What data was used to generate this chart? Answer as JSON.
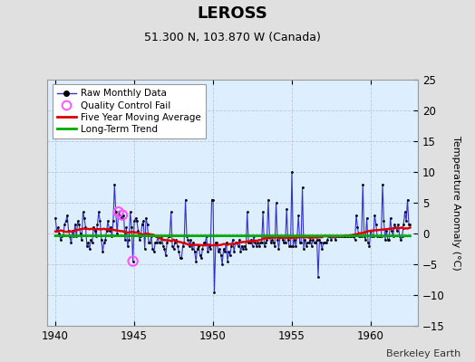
{
  "title": "LEROSS",
  "subtitle": "51.300 N, 103.870 W (Canada)",
  "ylabel": "Temperature Anomaly (°C)",
  "credit": "Berkeley Earth",
  "xlim": [
    1939.5,
    1963.0
  ],
  "ylim": [
    -15,
    25
  ],
  "yticks": [
    -15,
    -10,
    -5,
    0,
    5,
    10,
    15,
    20,
    25
  ],
  "xticks": [
    1940,
    1945,
    1950,
    1955,
    1960
  ],
  "background_color": "#e0e0e0",
  "plot_bg_color": "#ddeeff",
  "line_color": "#3333cc",
  "dot_color": "#000000",
  "ma_color": "#dd0000",
  "trend_color": "#00aa00",
  "qc_color": "#ff55ff",
  "raw_data_x": [
    1940.0,
    1940.083,
    1940.167,
    1940.25,
    1940.333,
    1940.417,
    1940.5,
    1940.583,
    1940.667,
    1940.75,
    1940.833,
    1940.917,
    1941.0,
    1941.083,
    1941.167,
    1941.25,
    1941.333,
    1941.417,
    1941.5,
    1941.583,
    1941.667,
    1941.75,
    1941.833,
    1941.917,
    1942.0,
    1942.083,
    1942.167,
    1942.25,
    1942.333,
    1942.417,
    1942.5,
    1942.583,
    1942.667,
    1942.75,
    1942.833,
    1942.917,
    1943.0,
    1943.083,
    1943.167,
    1943.25,
    1943.333,
    1943.417,
    1943.5,
    1943.583,
    1943.667,
    1943.75,
    1943.833,
    1943.917,
    1944.0,
    1944.083,
    1944.167,
    1944.25,
    1944.333,
    1944.417,
    1944.5,
    1944.583,
    1944.667,
    1944.75,
    1944.833,
    1944.917,
    1945.0,
    1945.083,
    1945.167,
    1945.25,
    1945.333,
    1945.417,
    1945.5,
    1945.583,
    1945.667,
    1945.75,
    1945.833,
    1945.917,
    1946.0,
    1946.083,
    1946.167,
    1946.25,
    1946.333,
    1946.417,
    1946.5,
    1946.583,
    1946.667,
    1946.75,
    1946.833,
    1946.917,
    1947.0,
    1947.083,
    1947.167,
    1947.25,
    1947.333,
    1947.417,
    1947.5,
    1947.583,
    1947.667,
    1947.75,
    1947.833,
    1947.917,
    1948.0,
    1948.083,
    1948.167,
    1948.25,
    1948.333,
    1948.417,
    1948.5,
    1948.583,
    1948.667,
    1948.75,
    1948.833,
    1948.917,
    1949.0,
    1949.083,
    1949.167,
    1949.25,
    1949.333,
    1949.417,
    1949.5,
    1949.583,
    1949.667,
    1949.75,
    1949.833,
    1949.917,
    1950.0,
    1950.083,
    1950.167,
    1950.25,
    1950.333,
    1950.417,
    1950.5,
    1950.583,
    1950.667,
    1950.75,
    1950.833,
    1950.917,
    1951.0,
    1951.083,
    1951.167,
    1951.25,
    1951.333,
    1951.417,
    1951.5,
    1951.583,
    1951.667,
    1951.75,
    1951.833,
    1951.917,
    1952.0,
    1952.083,
    1952.167,
    1952.25,
    1952.333,
    1952.417,
    1952.5,
    1952.583,
    1952.667,
    1952.75,
    1952.833,
    1952.917,
    1953.0,
    1953.083,
    1953.167,
    1953.25,
    1953.333,
    1953.417,
    1953.5,
    1953.583,
    1953.667,
    1953.75,
    1953.833,
    1953.917,
    1954.0,
    1954.083,
    1954.167,
    1954.25,
    1954.333,
    1954.417,
    1954.5,
    1954.583,
    1954.667,
    1954.75,
    1954.833,
    1954.917,
    1955.0,
    1955.083,
    1955.167,
    1955.25,
    1955.333,
    1955.417,
    1955.5,
    1955.583,
    1955.667,
    1955.75,
    1955.833,
    1955.917,
    1956.0,
    1956.083,
    1956.167,
    1956.25,
    1956.333,
    1956.417,
    1956.5,
    1956.583,
    1956.667,
    1956.75,
    1956.833,
    1956.917,
    1957.0,
    1957.083,
    1957.167,
    1957.25,
    1957.333,
    1957.417,
    1957.5,
    1957.583,
    1957.667,
    1957.75,
    1957.833,
    1957.917,
    1958.0,
    1958.083,
    1958.167,
    1958.25,
    1958.333,
    1958.417,
    1958.5,
    1958.583,
    1958.667,
    1958.75,
    1958.833,
    1958.917,
    1959.0,
    1959.083,
    1959.167,
    1959.25,
    1959.333,
    1959.417,
    1959.5,
    1959.583,
    1959.667,
    1959.75,
    1959.833,
    1959.917,
    1960.0,
    1960.083,
    1960.167,
    1960.25,
    1960.333,
    1960.417,
    1960.5,
    1960.583,
    1960.667,
    1960.75,
    1960.833,
    1960.917,
    1961.0,
    1961.083,
    1961.167,
    1961.25,
    1961.333,
    1961.417,
    1961.5,
    1961.583,
    1961.667,
    1961.75,
    1961.833,
    1961.917,
    1962.0,
    1962.083,
    1962.167,
    1962.25,
    1962.333,
    1962.417,
    1962.5
  ],
  "raw_data_y": [
    2.5,
    0.5,
    1.0,
    0.0,
    -1.0,
    -0.5,
    -0.3,
    1.5,
    2.0,
    3.0,
    0.5,
    -0.5,
    -1.5,
    0.5,
    -0.5,
    1.5,
    -0.5,
    2.0,
    1.5,
    0.0,
    -1.0,
    3.5,
    2.5,
    1.0,
    -2.0,
    -1.5,
    -2.5,
    -1.0,
    -1.5,
    1.0,
    0.5,
    -0.5,
    1.5,
    3.5,
    2.0,
    -1.0,
    -3.0,
    -1.5,
    -1.0,
    0.5,
    2.0,
    0.5,
    1.0,
    -0.5,
    2.0,
    8.0,
    3.5,
    0.0,
    3.5,
    3.0,
    2.5,
    3.0,
    3.0,
    -1.0,
    1.0,
    -2.0,
    -1.0,
    3.5,
    1.0,
    -4.5,
    2.0,
    2.5,
    2.0,
    0.5,
    -1.0,
    -0.5,
    1.5,
    2.0,
    -2.5,
    2.5,
    1.5,
    -1.5,
    -1.5,
    -0.5,
    -2.5,
    -3.0,
    -1.5,
    -1.5,
    -0.5,
    -1.5,
    -1.5,
    -0.5,
    -2.0,
    -2.5,
    -3.5,
    -1.5,
    -0.5,
    -0.5,
    3.5,
    -2.0,
    -2.5,
    -1.5,
    -1.0,
    -2.0,
    -3.0,
    -4.0,
    -4.0,
    -2.0,
    -1.5,
    5.5,
    -0.5,
    -1.0,
    -2.0,
    -1.0,
    -2.5,
    -1.5,
    -3.0,
    -4.5,
    -2.5,
    -2.0,
    -3.5,
    -4.0,
    -2.5,
    -1.5,
    -1.5,
    -0.5,
    -3.0,
    -2.0,
    -2.5,
    5.5,
    5.5,
    -9.5,
    -1.5,
    -1.5,
    -3.0,
    -2.5,
    -3.5,
    -5.0,
    -2.5,
    -3.0,
    -1.5,
    -4.5,
    -3.0,
    -3.5,
    -2.0,
    -1.0,
    -3.0,
    -1.5,
    -1.5,
    -2.0,
    -1.0,
    -3.0,
    -2.0,
    -2.5,
    -2.0,
    -2.5,
    3.5,
    -1.5,
    -1.5,
    -1.0,
    -2.0,
    -0.5,
    -1.5,
    -2.0,
    -1.5,
    -2.0,
    -1.5,
    -1.5,
    3.5,
    -2.0,
    -1.5,
    -1.0,
    5.5,
    -0.5,
    -1.5,
    -1.0,
    -1.5,
    -2.0,
    5.0,
    -1.0,
    -2.5,
    -0.5,
    -0.5,
    -1.0,
    -1.5,
    -1.5,
    4.0,
    -1.0,
    -2.0,
    -2.0,
    10.0,
    -2.0,
    -1.0,
    -2.0,
    -0.5,
    3.0,
    -1.5,
    -1.5,
    7.5,
    -2.5,
    -1.0,
    -2.0,
    -1.5,
    -1.5,
    -1.0,
    -2.0,
    -1.0,
    -1.5,
    -1.5,
    -1.0,
    -7.0,
    -1.0,
    -1.5,
    -2.5,
    -1.5,
    -1.5,
    -1.5,
    -1.0,
    -0.5,
    -0.5,
    -1.0,
    -0.5,
    -0.5,
    -1.0,
    -0.5,
    -0.5,
    -0.5,
    -0.5,
    -0.5,
    -0.5,
    -0.5,
    -0.5,
    -0.5,
    -0.5,
    -0.5,
    -0.5,
    -0.5,
    -0.5,
    -1.0,
    3.0,
    1.0,
    -0.5,
    -0.5,
    -0.5,
    8.0,
    -0.5,
    -1.0,
    2.5,
    -1.5,
    -2.0,
    0.5,
    -0.5,
    -0.5,
    3.0,
    1.5,
    -0.5,
    -0.5,
    -0.5,
    -0.5,
    8.0,
    2.0,
    -1.0,
    0.5,
    -1.0,
    -1.0,
    2.5,
    0.5,
    -0.5,
    1.5,
    1.0,
    0.5,
    1.5,
    -0.5,
    -1.0,
    -0.5,
    1.5,
    3.5,
    2.0,
    5.5,
    1.5,
    1.5
  ],
  "qc_fail_points": [
    [
      1944.0,
      3.5
    ],
    [
      1944.25,
      3.0
    ],
    [
      1944.917,
      -4.5
    ]
  ]
}
